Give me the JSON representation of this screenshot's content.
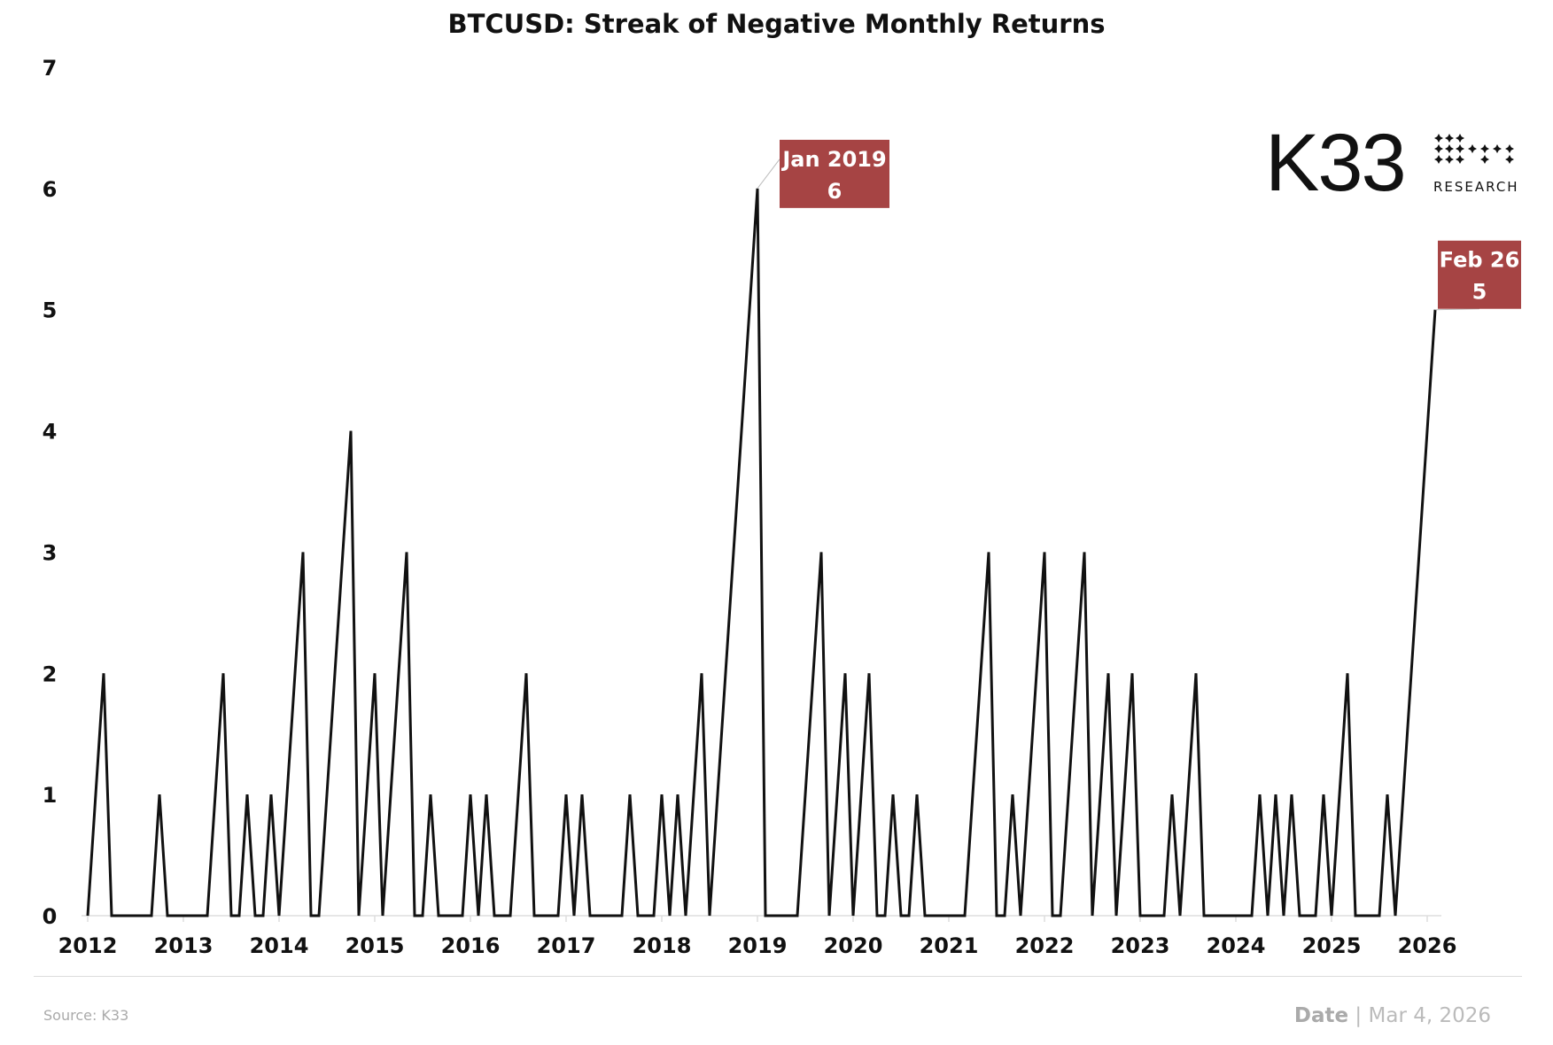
{
  "chart_data": {
    "type": "line",
    "title": "BTCUSD: Streak of Negative Monthly Returns",
    "xlabel": "",
    "ylabel": "",
    "ylim": [
      0,
      7
    ],
    "yticks": [
      "0",
      "1",
      "2",
      "3",
      "4",
      "5",
      "6",
      "7"
    ],
    "xticks": [
      "2012",
      "2013",
      "2014",
      "2015",
      "2016",
      "2017",
      "2018",
      "2019",
      "2020",
      "2021",
      "2022",
      "2023",
      "2024",
      "2025",
      "2026"
    ],
    "grid": false,
    "legend": "none",
    "line_color": "#111111",
    "x": [
      "2012-01",
      "2012-02",
      "2012-03",
      "2012-04",
      "2012-05",
      "2012-06",
      "2012-07",
      "2012-08",
      "2012-09",
      "2012-10",
      "2012-11",
      "2012-12",
      "2013-01",
      "2013-02",
      "2013-03",
      "2013-04",
      "2013-05",
      "2013-06",
      "2013-07",
      "2013-08",
      "2013-09",
      "2013-10",
      "2013-11",
      "2013-12",
      "2014-01",
      "2014-02",
      "2014-03",
      "2014-04",
      "2014-05",
      "2014-06",
      "2014-07",
      "2014-08",
      "2014-09",
      "2014-10",
      "2014-11",
      "2014-12",
      "2015-01",
      "2015-02",
      "2015-03",
      "2015-04",
      "2015-05",
      "2015-06",
      "2015-07",
      "2015-08",
      "2015-09",
      "2015-10",
      "2015-11",
      "2015-12",
      "2016-01",
      "2016-02",
      "2016-03",
      "2016-04",
      "2016-05",
      "2016-06",
      "2016-07",
      "2016-08",
      "2016-09",
      "2016-10",
      "2016-11",
      "2016-12",
      "2017-01",
      "2017-02",
      "2017-03",
      "2017-04",
      "2017-05",
      "2017-06",
      "2017-07",
      "2017-08",
      "2017-09",
      "2017-10",
      "2017-11",
      "2017-12",
      "2018-01",
      "2018-02",
      "2018-03",
      "2018-04",
      "2018-05",
      "2018-06",
      "2018-07",
      "2018-08",
      "2018-09",
      "2018-10",
      "2018-11",
      "2018-12",
      "2019-01",
      "2019-02",
      "2019-03",
      "2019-04",
      "2019-05",
      "2019-06",
      "2019-07",
      "2019-08",
      "2019-09",
      "2019-10",
      "2019-11",
      "2019-12",
      "2020-01",
      "2020-02",
      "2020-03",
      "2020-04",
      "2020-05",
      "2020-06",
      "2020-07",
      "2020-08",
      "2020-09",
      "2020-10",
      "2020-11",
      "2020-12",
      "2021-01",
      "2021-02",
      "2021-03",
      "2021-04",
      "2021-05",
      "2021-06",
      "2021-07",
      "2021-08",
      "2021-09",
      "2021-10",
      "2021-11",
      "2021-12",
      "2022-01",
      "2022-02",
      "2022-03",
      "2022-04",
      "2022-05",
      "2022-06",
      "2022-07",
      "2022-08",
      "2022-09",
      "2022-10",
      "2022-11",
      "2022-12",
      "2023-01",
      "2023-02",
      "2023-03",
      "2023-04",
      "2023-05",
      "2023-06",
      "2023-07",
      "2023-08",
      "2023-09",
      "2023-10",
      "2023-11",
      "2023-12",
      "2024-01",
      "2024-02",
      "2024-03",
      "2024-04",
      "2024-05",
      "2024-06",
      "2024-07",
      "2024-08",
      "2024-09",
      "2024-10",
      "2024-11",
      "2024-12",
      "2025-01",
      "2025-02",
      "2025-03",
      "2025-04",
      "2025-05",
      "2025-06",
      "2025-07",
      "2025-08",
      "2025-09",
      "2025-10",
      "2025-11",
      "2025-12",
      "2026-01",
      "2026-02"
    ],
    "values": [
      0,
      1,
      2,
      0,
      0,
      0,
      0,
      0,
      0,
      1,
      0,
      0,
      0,
      0,
      0,
      0,
      1,
      2,
      0,
      0,
      1,
      0,
      0,
      1,
      0,
      1,
      2,
      3,
      0,
      0,
      1,
      2,
      3,
      4,
      0,
      1,
      2,
      0,
      1,
      2,
      3,
      0,
      0,
      1,
      0,
      0,
      0,
      0,
      1,
      0,
      1,
      0,
      0,
      0,
      1,
      2,
      0,
      0,
      0,
      0,
      1,
      0,
      1,
      0,
      0,
      0,
      0,
      0,
      1,
      0,
      0,
      0,
      1,
      0,
      1,
      0,
      1,
      2,
      0,
      1,
      2,
      3,
      4,
      5,
      6,
      0,
      0,
      0,
      0,
      0,
      1,
      2,
      3,
      0,
      1,
      2,
      0,
      1,
      2,
      0,
      0,
      1,
      0,
      0,
      1,
      0,
      0,
      0,
      0,
      0,
      0,
      1,
      2,
      3,
      0,
      0,
      1,
      0,
      1,
      2,
      3,
      0,
      0,
      1,
      2,
      3,
      0,
      1,
      2,
      0,
      1,
      2,
      0,
      0,
      0,
      0,
      1,
      0,
      1,
      2,
      0,
      0,
      0,
      0,
      0,
      0,
      0,
      1,
      0,
      1,
      0,
      1,
      0,
      0,
      0,
      1,
      0,
      1,
      2,
      0,
      0,
      0,
      0,
      1,
      0,
      1,
      2,
      3,
      4,
      5
    ],
    "annotations": [
      {
        "x": "2019-01",
        "label": "Jan 2019",
        "value": "6",
        "color": "#a64444"
      },
      {
        "x": "2026-02",
        "label": "Feb 26",
        "value": "5",
        "color": "#a64444"
      }
    ]
  },
  "logo": {
    "name": "K33",
    "subtitle": "RESEARCH"
  },
  "footer": {
    "source": "Source:  K33",
    "date_label": "Date",
    "date_value": "Mar 4, 2026"
  }
}
